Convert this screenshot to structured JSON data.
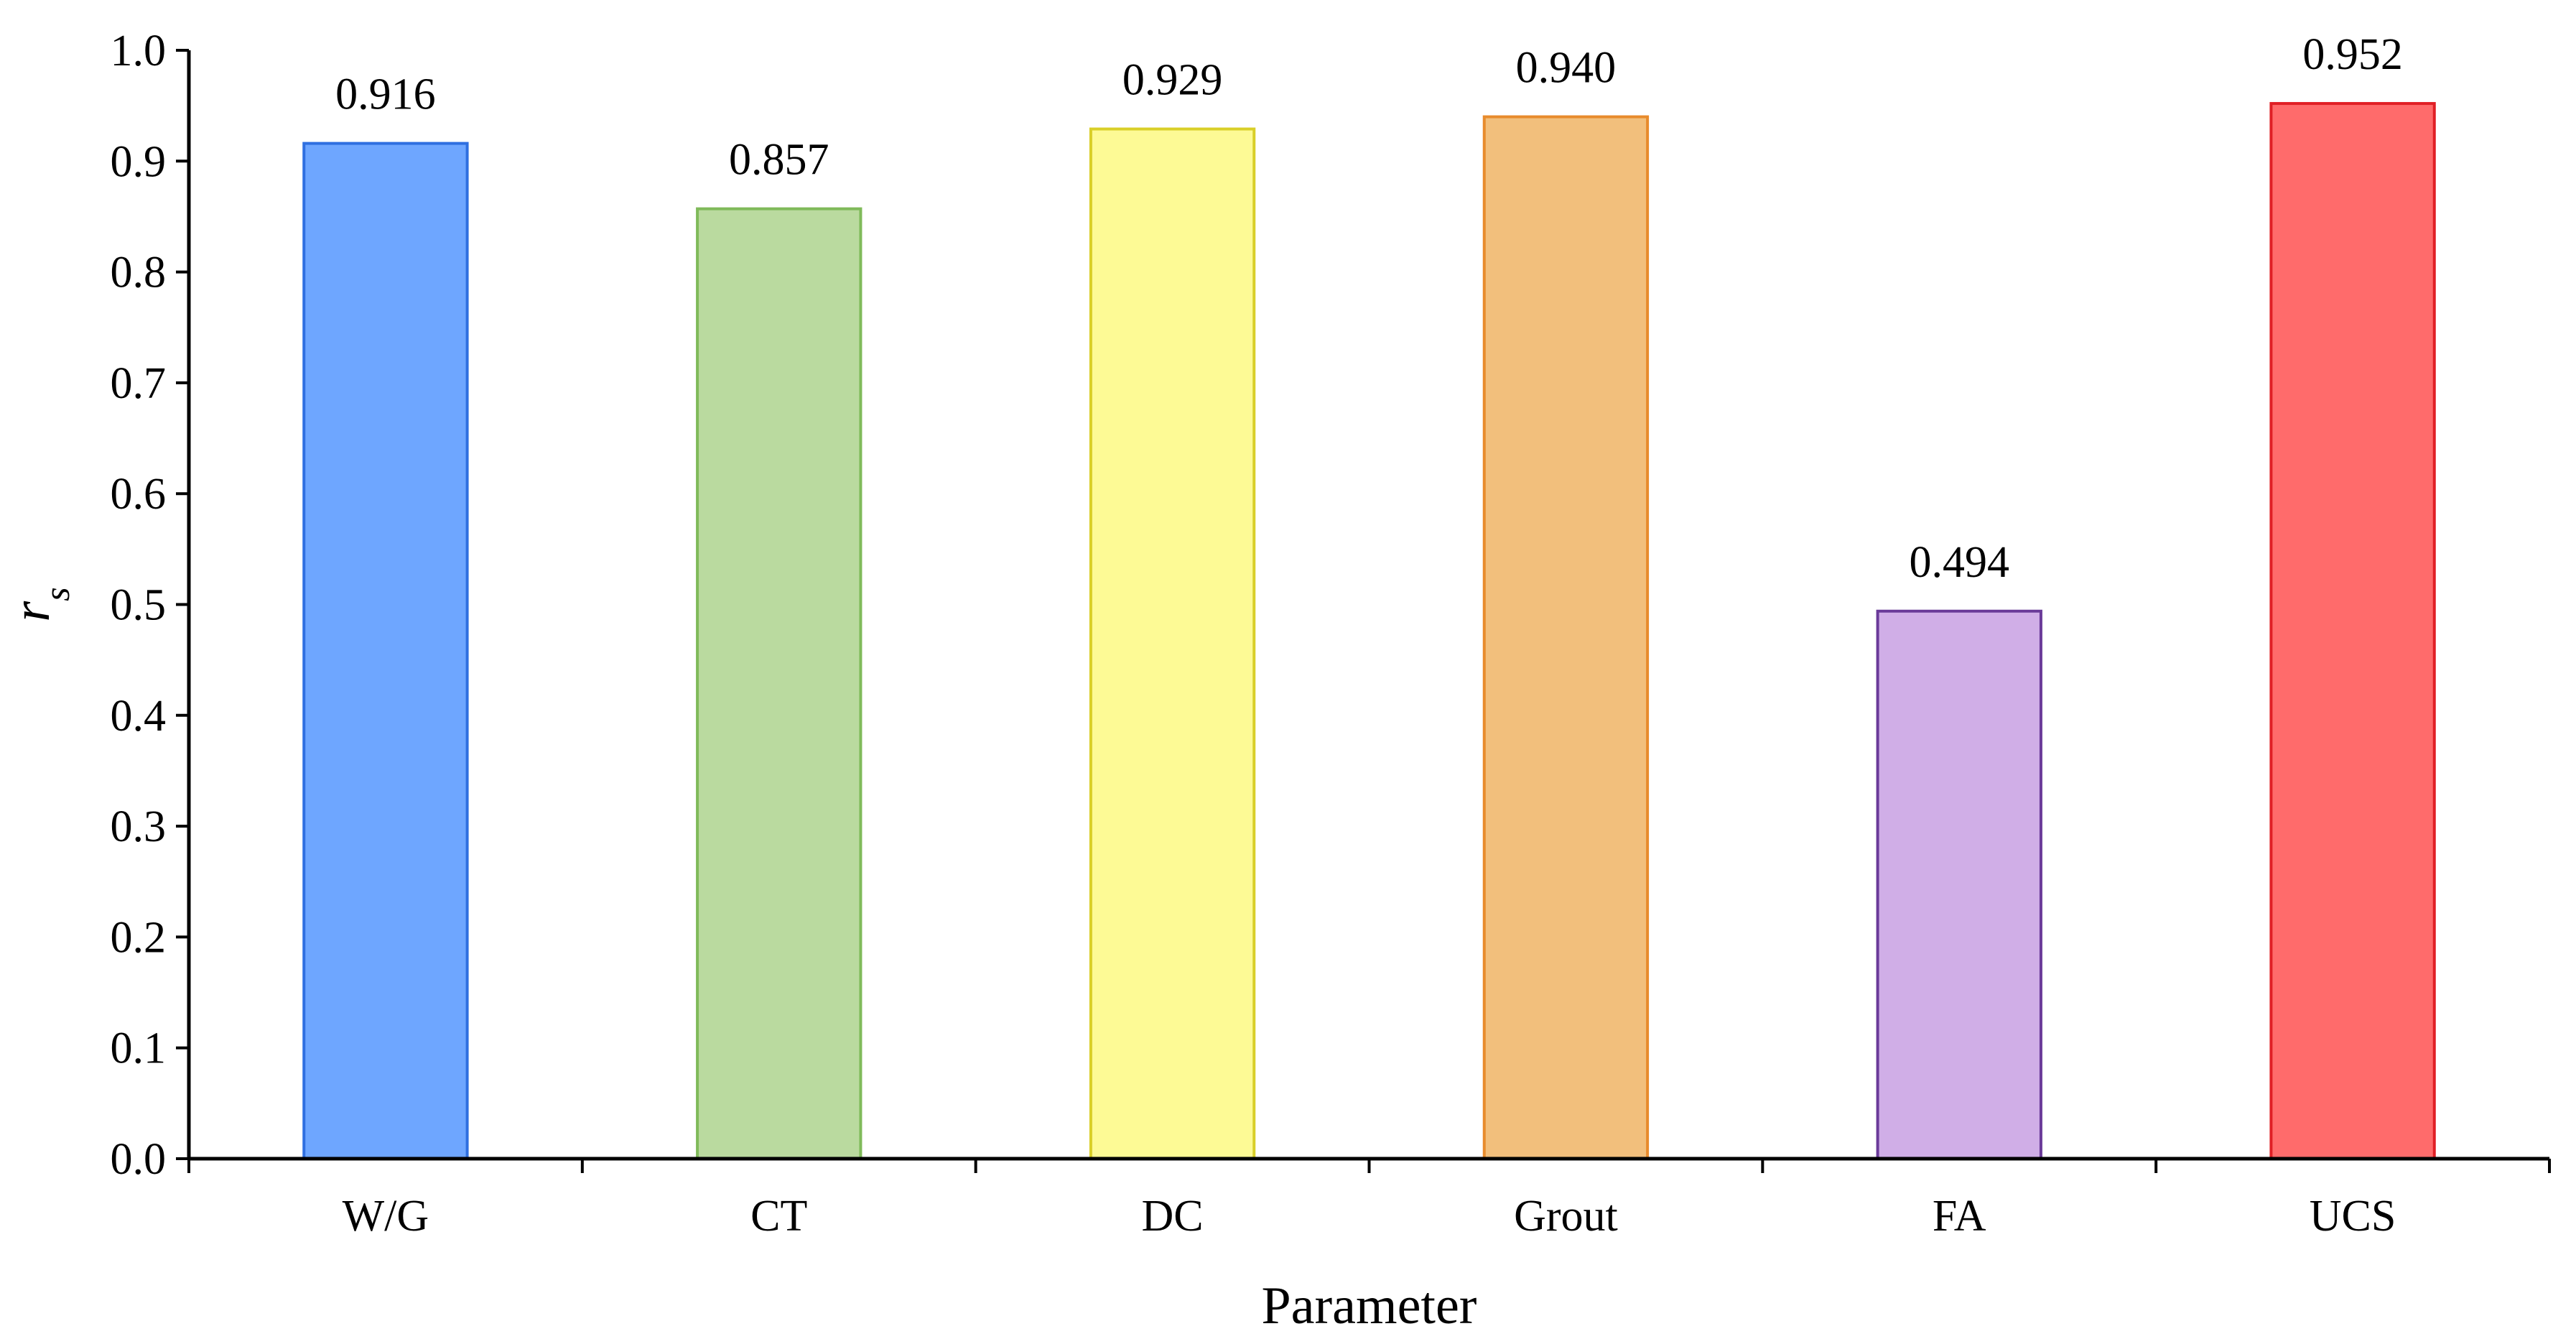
{
  "chart_data": {
    "type": "bar",
    "title": "",
    "xlabel": "Parameter",
    "ylabel": {
      "main": "r",
      "subscript": "s"
    },
    "categories": [
      "W/G",
      "CT",
      "DC",
      "Grout",
      "FA",
      "UCS"
    ],
    "values": [
      0.916,
      0.857,
      0.929,
      0.94,
      0.494,
      0.952
    ],
    "data_labels": [
      "0.916",
      "0.857",
      "0.929",
      "0.940",
      "0.494",
      "0.952"
    ],
    "ylim": [
      0.0,
      1.0
    ],
    "yticks": [
      0.0,
      0.1,
      0.2,
      0.3,
      0.4,
      0.5,
      0.6,
      0.7,
      0.8,
      0.9,
      1.0
    ],
    "ytick_labels": [
      "0.0",
      "0.1",
      "0.2",
      "0.3",
      "0.4",
      "0.5",
      "0.6",
      "0.7",
      "0.8",
      "0.9",
      "1.0"
    ],
    "grid": false,
    "legend": "none",
    "bar_fill_colors": [
      "#6ea6ff",
      "#bada9f",
      "#fdfa95",
      "#f2bf7c",
      "#d0aee7",
      "#ff6b6b"
    ],
    "bar_edge_colors": [
      "#2f6fe0",
      "#7fba5a",
      "#d9cf28",
      "#e88b2c",
      "#6a3a99",
      "#e01f25"
    ]
  }
}
